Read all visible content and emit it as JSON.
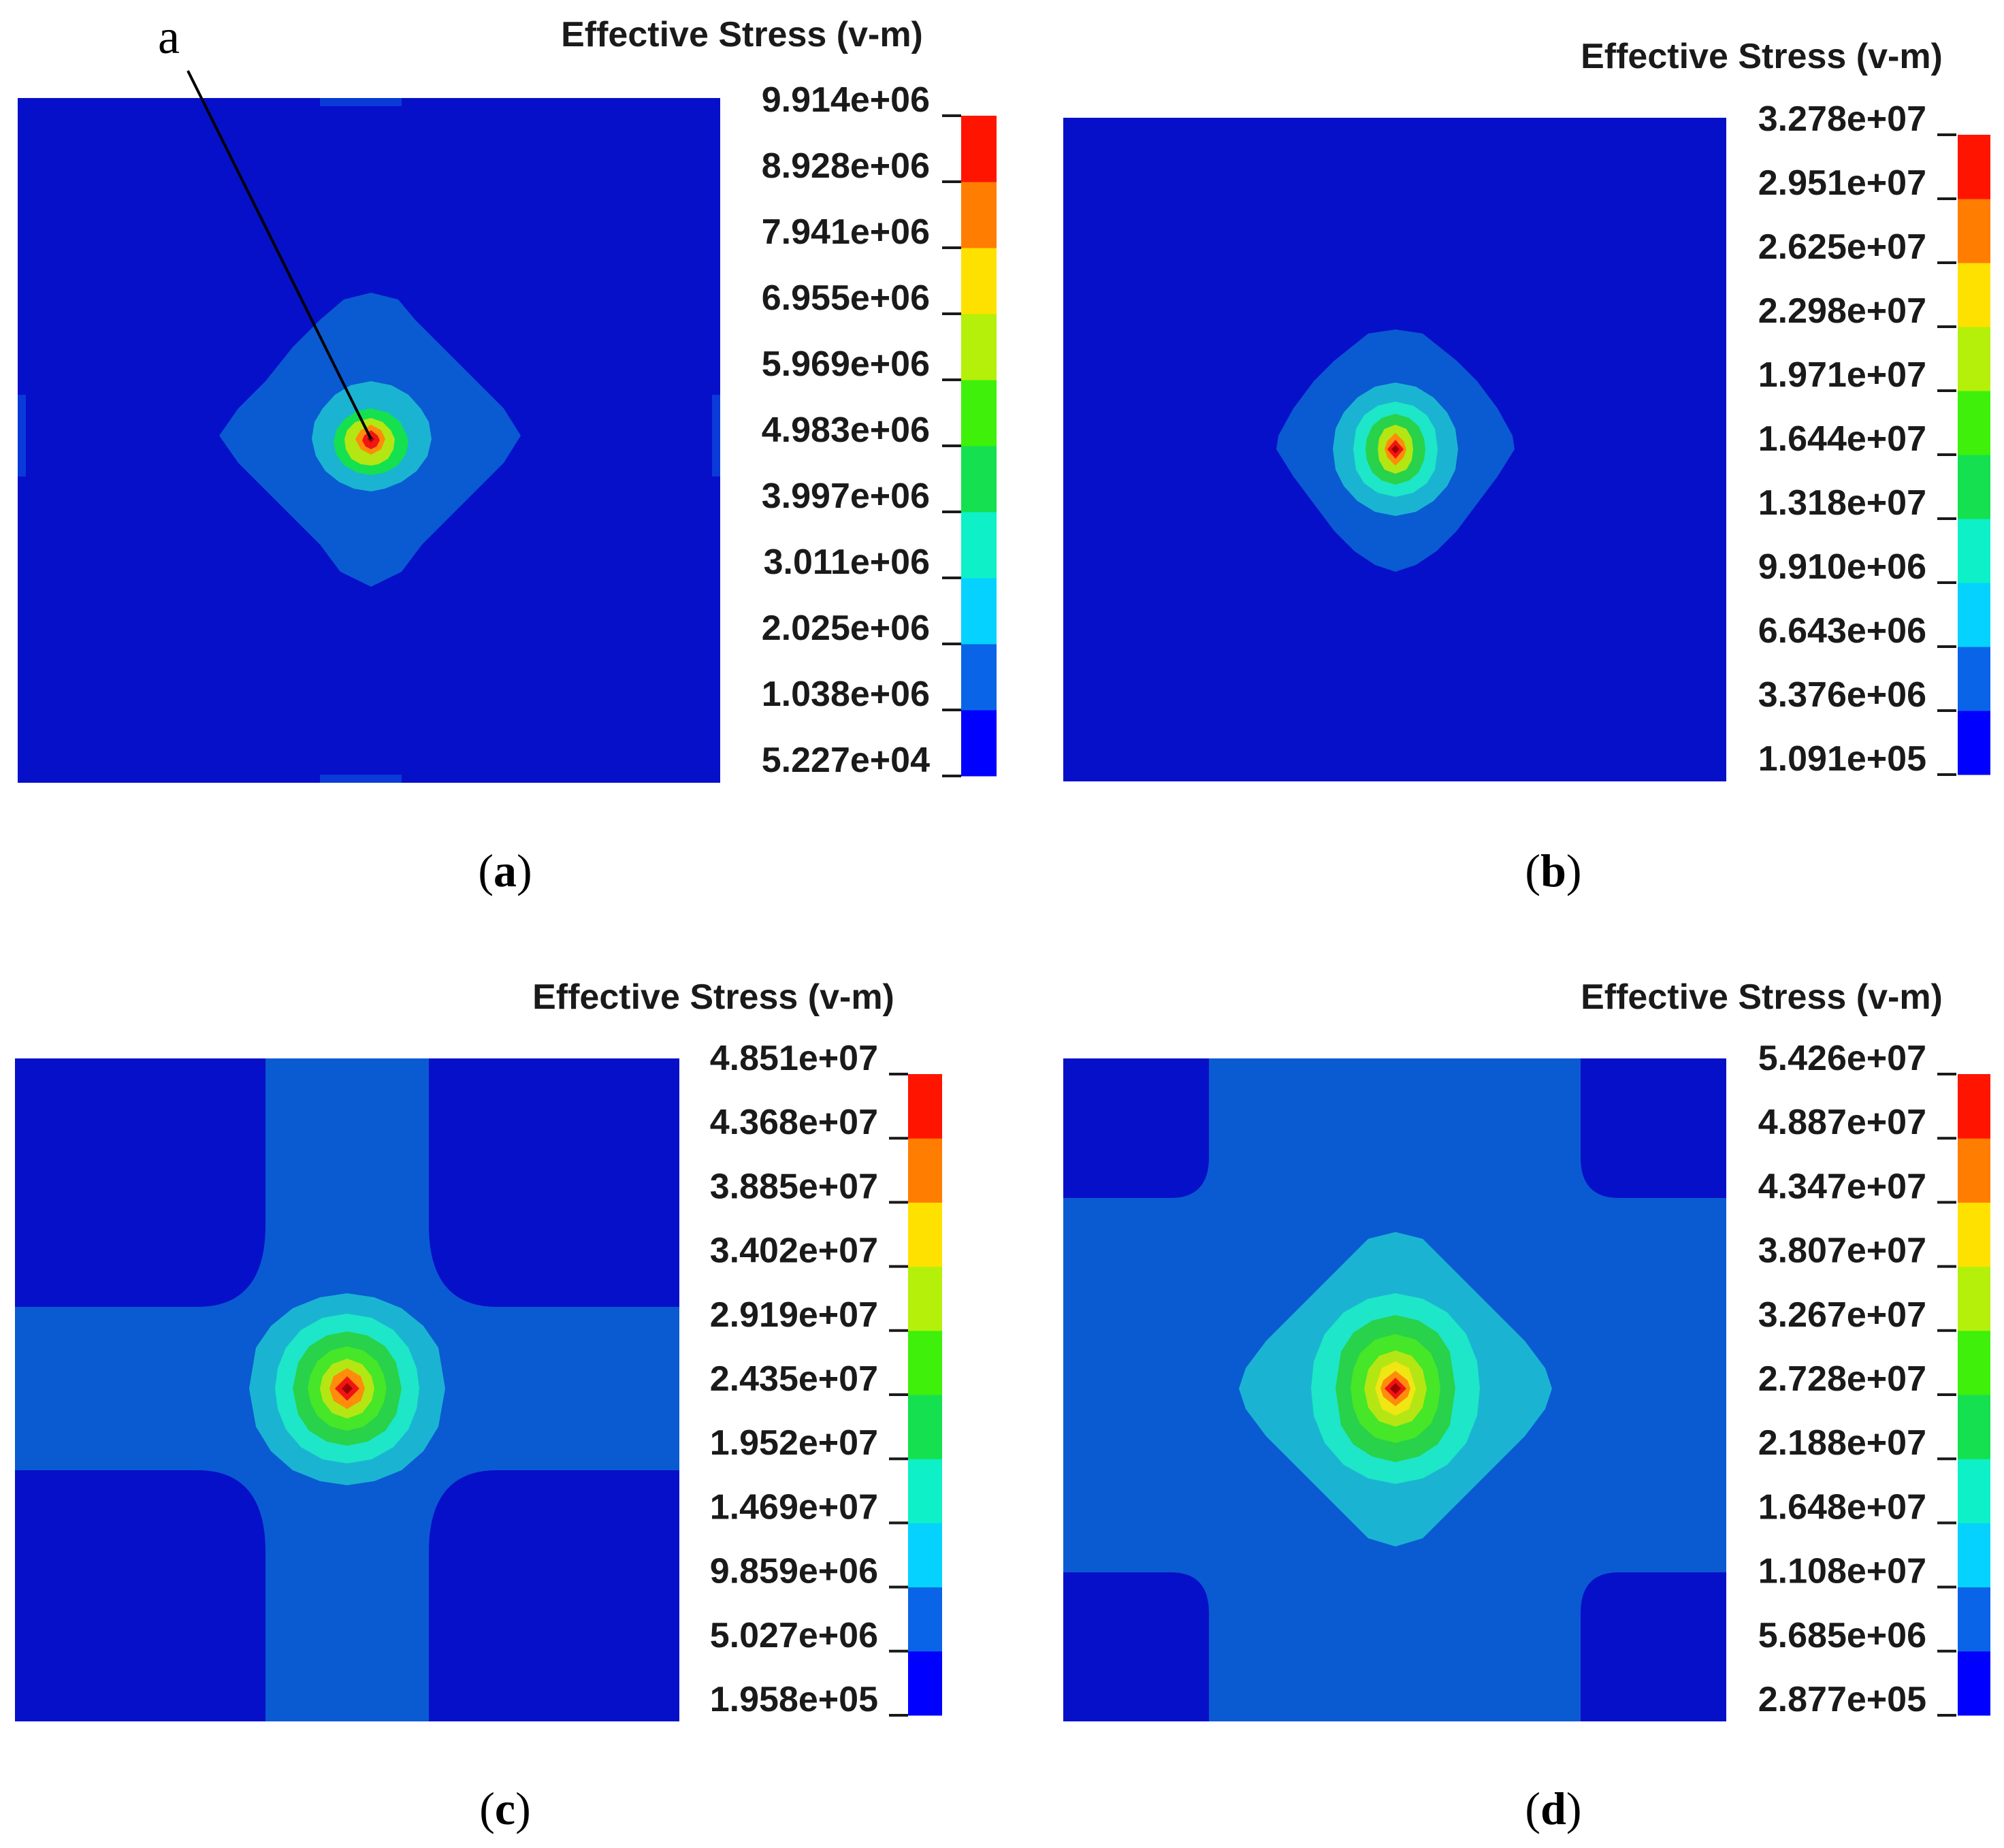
{
  "colors": {
    "bands": [
      "#0000ff",
      "#0a64e8",
      "#05d2ff",
      "#0ef0c8",
      "#14e050",
      "#3ef00a",
      "#b4f00a",
      "#ffe100",
      "#ff7d00",
      "#ff1400"
    ],
    "background_blue": "#0610c8",
    "level1_blue": "#0a5ad2",
    "level2_cyan": "#1ab4d2",
    "level3_aqua": "#1ee6c8",
    "level4_green": "#28d24a",
    "level5_green": "#46e628",
    "level6_yellowgreen": "#b4e614",
    "level7_yellow": "#f0e614",
    "level8_orange": "#ff8c0a",
    "level9_red": "#f01414",
    "core": "#c80000"
  },
  "panels": [
    {
      "caption_open": "(",
      "caption_letter": "a",
      "caption_close": ")",
      "legend_title": "Effective Stress (v-m)",
      "ticks": [
        "9.914e+06",
        "8.928e+06",
        "7.941e+06",
        "6.955e+06",
        "5.969e+06",
        "4.983e+06",
        "3.997e+06",
        "3.011e+06",
        "2.025e+06",
        "1.038e+06",
        "5.227e+04"
      ],
      "annotation": "a"
    },
    {
      "caption_open": "(",
      "caption_letter": "b",
      "caption_close": ")",
      "legend_title": "Effective Stress (v-m)",
      "ticks": [
        "3.278e+07",
        "2.951e+07",
        "2.625e+07",
        "2.298e+07",
        "1.971e+07",
        "1.644e+07",
        "1.318e+07",
        "9.910e+06",
        "6.643e+06",
        "3.376e+06",
        "1.091e+05"
      ]
    },
    {
      "caption_open": "(",
      "caption_letter": "c",
      "caption_close": ")",
      "legend_title": "Effective Stress (v-m)",
      "ticks": [
        "4.851e+07",
        "4.368e+07",
        "3.885e+07",
        "3.402e+07",
        "2.919e+07",
        "2.435e+07",
        "1.952e+07",
        "1.469e+07",
        "9.859e+06",
        "5.027e+06",
        "1.958e+05"
      ]
    },
    {
      "caption_open": "(",
      "caption_letter": "d",
      "caption_close": ")",
      "legend_title": "Effective Stress (v-m)",
      "ticks": [
        "5.426e+07",
        "4.887e+07",
        "4.347e+07",
        "3.807e+07",
        "3.267e+07",
        "2.728e+07",
        "2.188e+07",
        "1.648e+07",
        "1.108e+07",
        "5.685e+06",
        "2.877e+05"
      ]
    }
  ]
}
